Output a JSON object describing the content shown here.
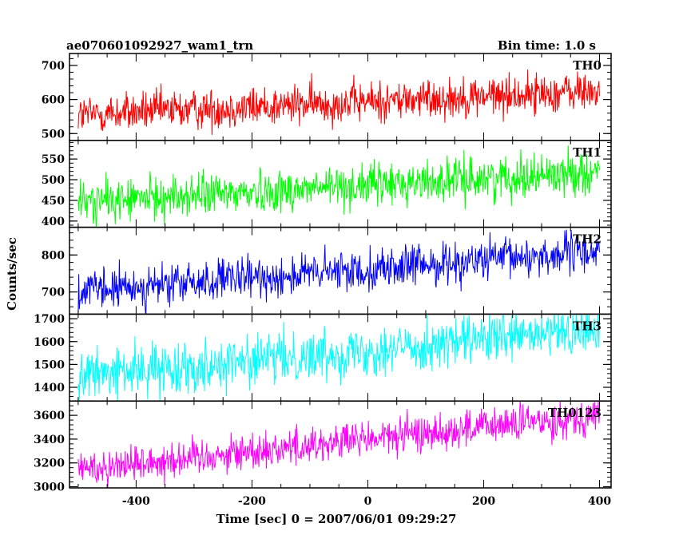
{
  "chart_data": {
    "type": "line",
    "title": "ae070601092927_wam1_trn",
    "bin_time": "Bin time: 1.0 s",
    "xlabel": "Time [sec] 0 = 2007/06/01 09:29:27",
    "ylabel": "Counts/sec",
    "xlim": [
      -515,
      420
    ],
    "x_range": [
      -500,
      400
    ],
    "xticks": [
      -400,
      -200,
      0,
      200,
      400
    ],
    "grid": false,
    "panels": [
      {
        "name": "TH0",
        "color": "#ff0000",
        "ylim": [
          480,
          735
        ],
        "yticks": [
          500,
          600,
          700
        ],
        "trend_start": 555,
        "trend_end": 625,
        "noise": 30
      },
      {
        "name": "TH1",
        "color": "#00ff00",
        "ylim": [
          385,
          595
        ],
        "yticks": [
          400,
          450,
          500,
          550
        ],
        "trend_start": 445,
        "trend_end": 520,
        "noise": 26
      },
      {
        "name": "TH2",
        "color": "#0000ff",
        "ylim": [
          640,
          875
        ],
        "yticks": [
          700,
          800
        ],
        "trend_start": 700,
        "trend_end": 810,
        "noise": 28
      },
      {
        "name": "TH3",
        "color": "#00ffff",
        "ylim": [
          1340,
          1720
        ],
        "yticks": [
          1400,
          1500,
          1600,
          1700
        ],
        "trend_start": 1450,
        "trend_end": 1650,
        "noise": 55
      },
      {
        "name": "TH0123",
        "color": "#ff00ff",
        "ylim": [
          2990,
          3720
        ],
        "yticks": [
          3000,
          3200,
          3400,
          3600
        ],
        "trend_start": 3150,
        "trend_end": 3600,
        "noise": 80
      }
    ]
  }
}
